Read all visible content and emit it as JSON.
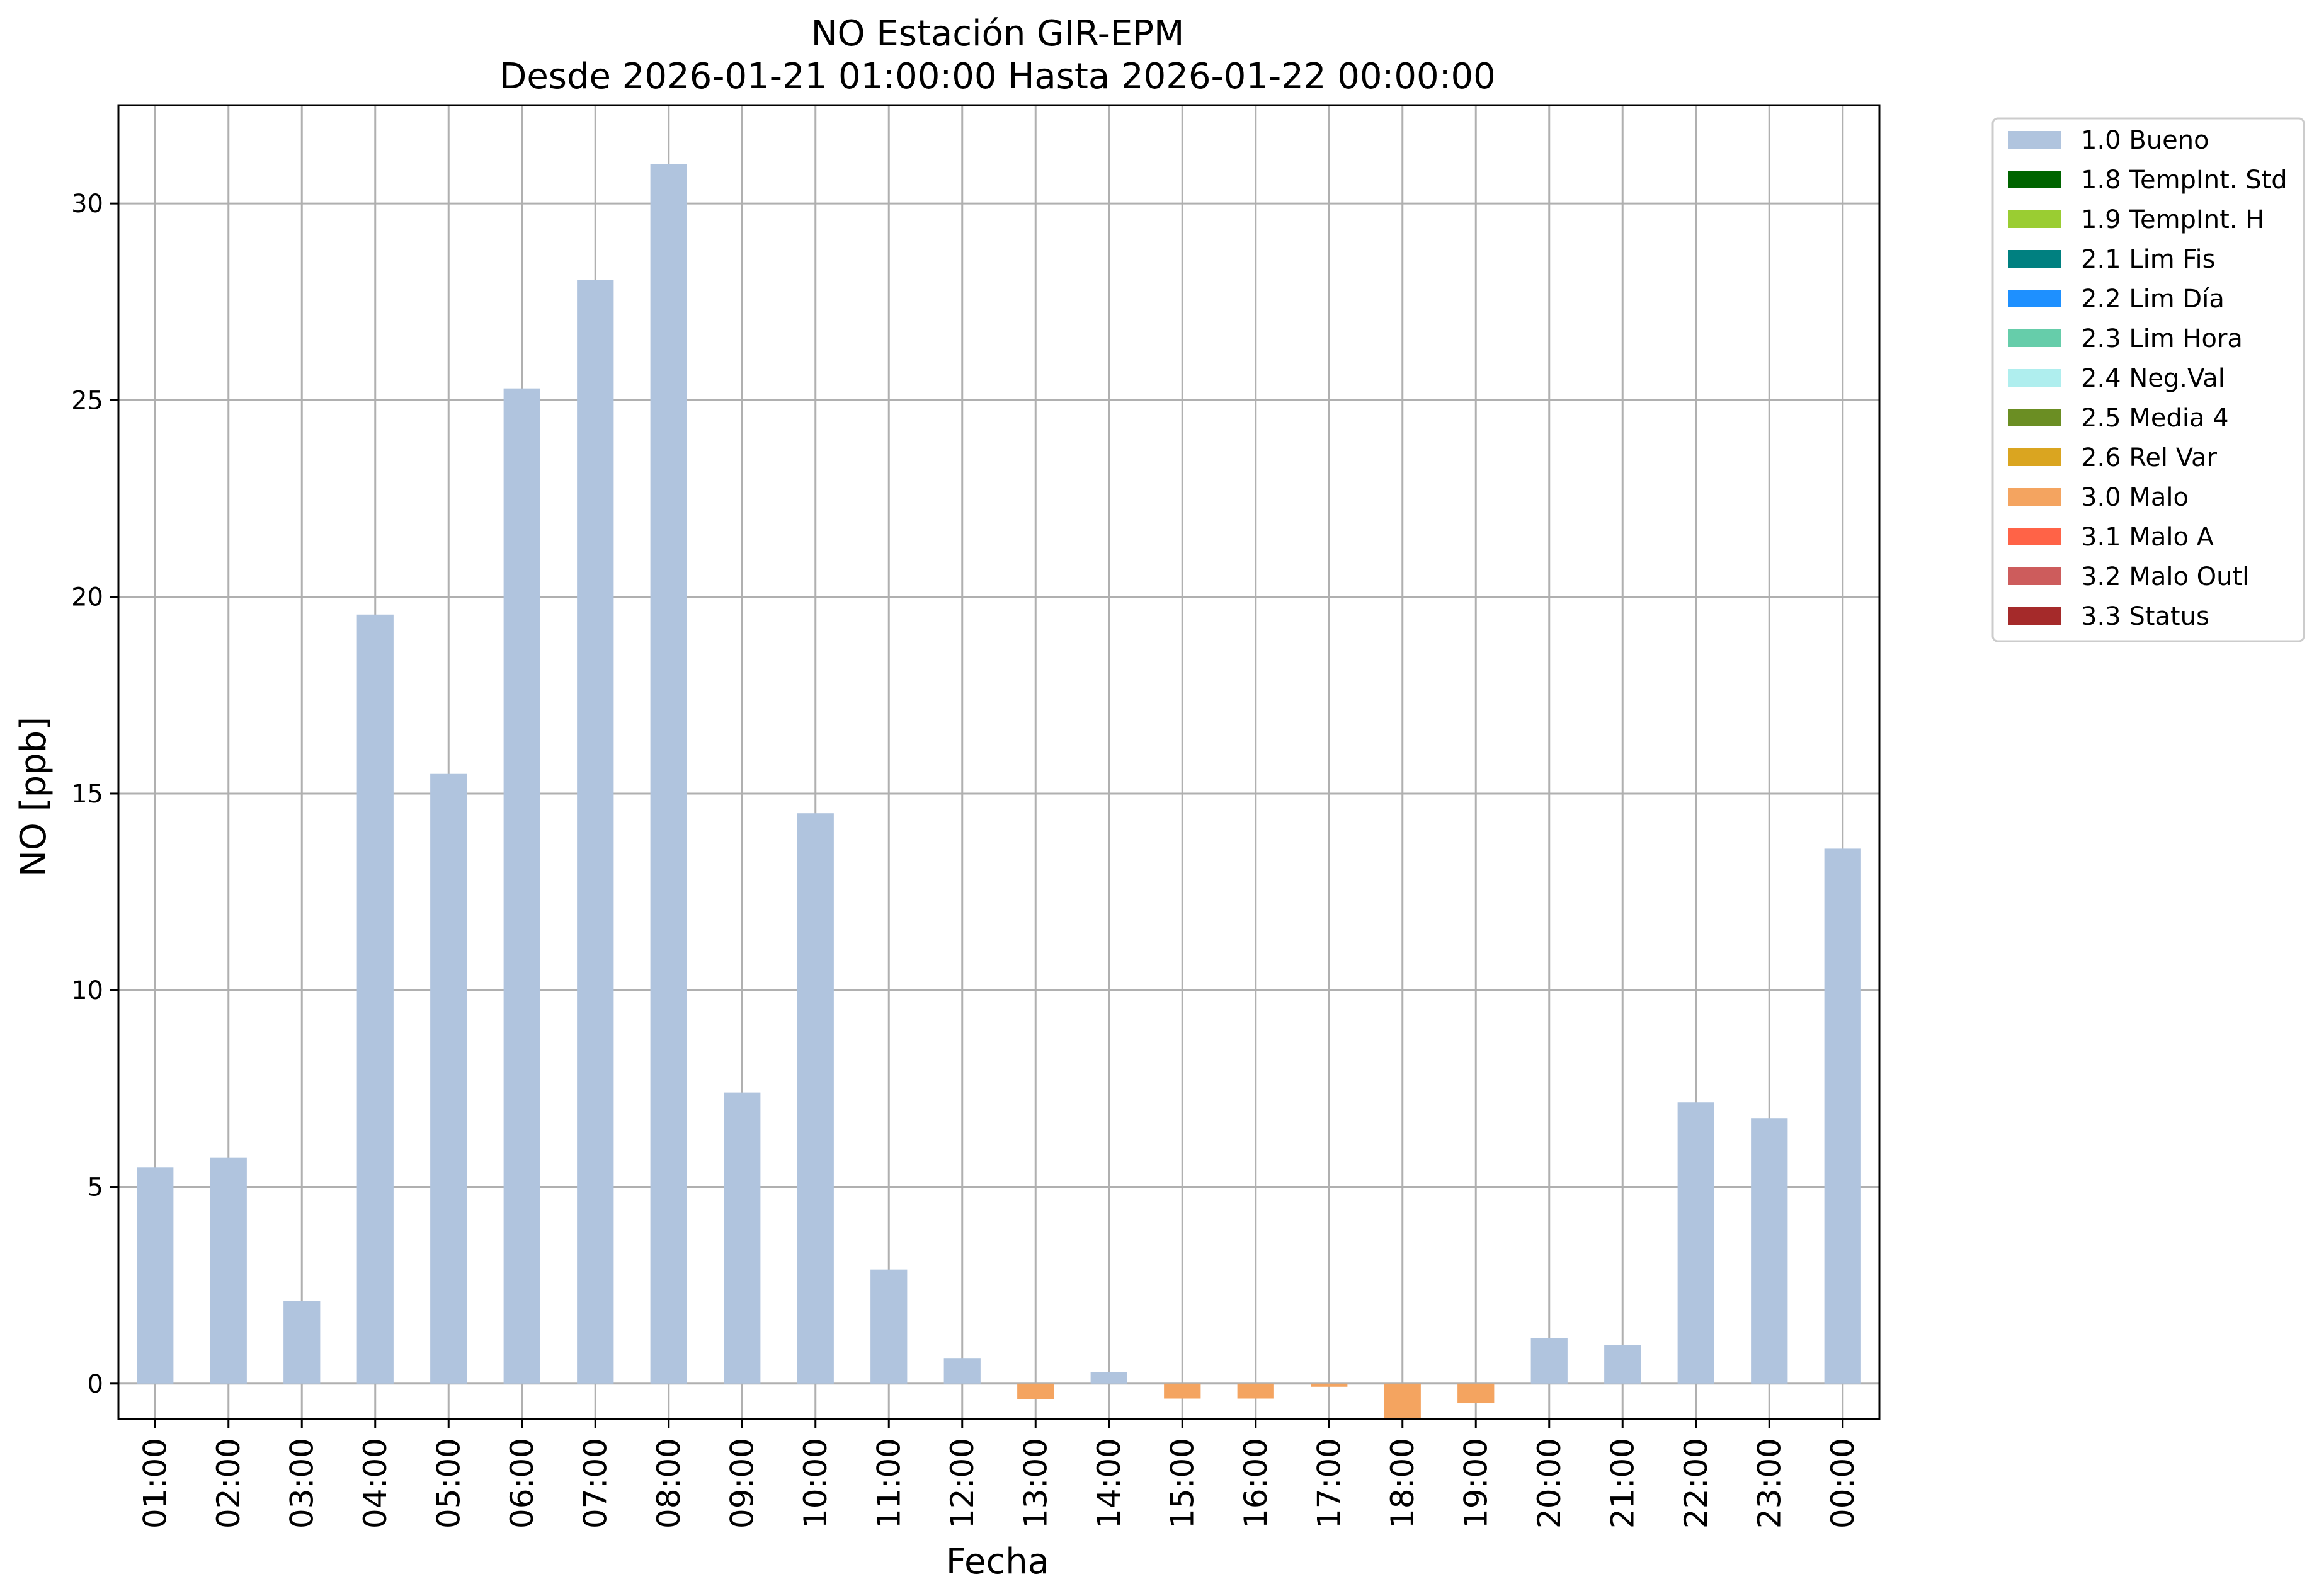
{
  "chart_data": {
    "type": "bar",
    "title_line1": "NO Estación GIR-EPM",
    "title_line2": "Desde 2026-01-21 01:00:00 Hasta 2026-01-22 00:00:00",
    "xlabel": "Fecha",
    "ylabel": "NO [ppb]",
    "categories": [
      "01:00",
      "02:00",
      "03:00",
      "04:00",
      "05:00",
      "06:00",
      "07:00",
      "08:00",
      "09:00",
      "10:00",
      "11:00",
      "12:00",
      "13:00",
      "14:00",
      "15:00",
      "16:00",
      "17:00",
      "18:00",
      "19:00",
      "20:00",
      "21:00",
      "22:00",
      "23:00",
      "00:00"
    ],
    "values": [
      5.5,
      5.75,
      2.1,
      19.55,
      15.5,
      25.3,
      28.05,
      31.0,
      7.4,
      14.5,
      2.9,
      0.65,
      -0.4,
      0.3,
      -0.38,
      -0.38,
      -0.08,
      -0.9,
      -0.5,
      1.15,
      0.98,
      7.15,
      6.75,
      13.6
    ],
    "flags": [
      "1.0 Bueno",
      "1.0 Bueno",
      "1.0 Bueno",
      "1.0 Bueno",
      "1.0 Bueno",
      "1.0 Bueno",
      "1.0 Bueno",
      "1.0 Bueno",
      "1.0 Bueno",
      "1.0 Bueno",
      "1.0 Bueno",
      "1.0 Bueno",
      "3.0 Malo",
      "1.0 Bueno",
      "3.0 Malo",
      "3.0 Malo",
      "3.0 Malo",
      "3.0 Malo",
      "3.0 Malo",
      "1.0 Bueno",
      "1.0 Bueno",
      "1.0 Bueno",
      "1.0 Bueno",
      "1.0 Bueno"
    ],
    "ylim": [
      -0.9,
      32.5
    ],
    "yticks": [
      0,
      5,
      10,
      15,
      20,
      25,
      30
    ],
    "grid": true,
    "legend_position": "outside-top-right",
    "legend": [
      {
        "label": "1.0 Bueno",
        "color": "#b0c4de"
      },
      {
        "label": "1.8 TempInt. Std",
        "color": "#006400"
      },
      {
        "label": "1.9 TempInt. H",
        "color": "#9acd32"
      },
      {
        "label": "2.1 Lim Fis",
        "color": "#008080"
      },
      {
        "label": "2.2 Lim Día",
        "color": "#1e90ff"
      },
      {
        "label": "2.3 Lim Hora",
        "color": "#66cdaa"
      },
      {
        "label": "2.4 Neg.Val",
        "color": "#afeeee"
      },
      {
        "label": "2.5 Media 4",
        "color": "#6b8e23"
      },
      {
        "label": "2.6 Rel Var",
        "color": "#daa520"
      },
      {
        "label": "3.0 Malo",
        "color": "#f4a460"
      },
      {
        "label": "3.1 Malo A",
        "color": "#ff6347"
      },
      {
        "label": "3.2 Malo Outl",
        "color": "#cd5c5c"
      },
      {
        "label": "3.3 Status",
        "color": "#a52a2a"
      }
    ]
  }
}
